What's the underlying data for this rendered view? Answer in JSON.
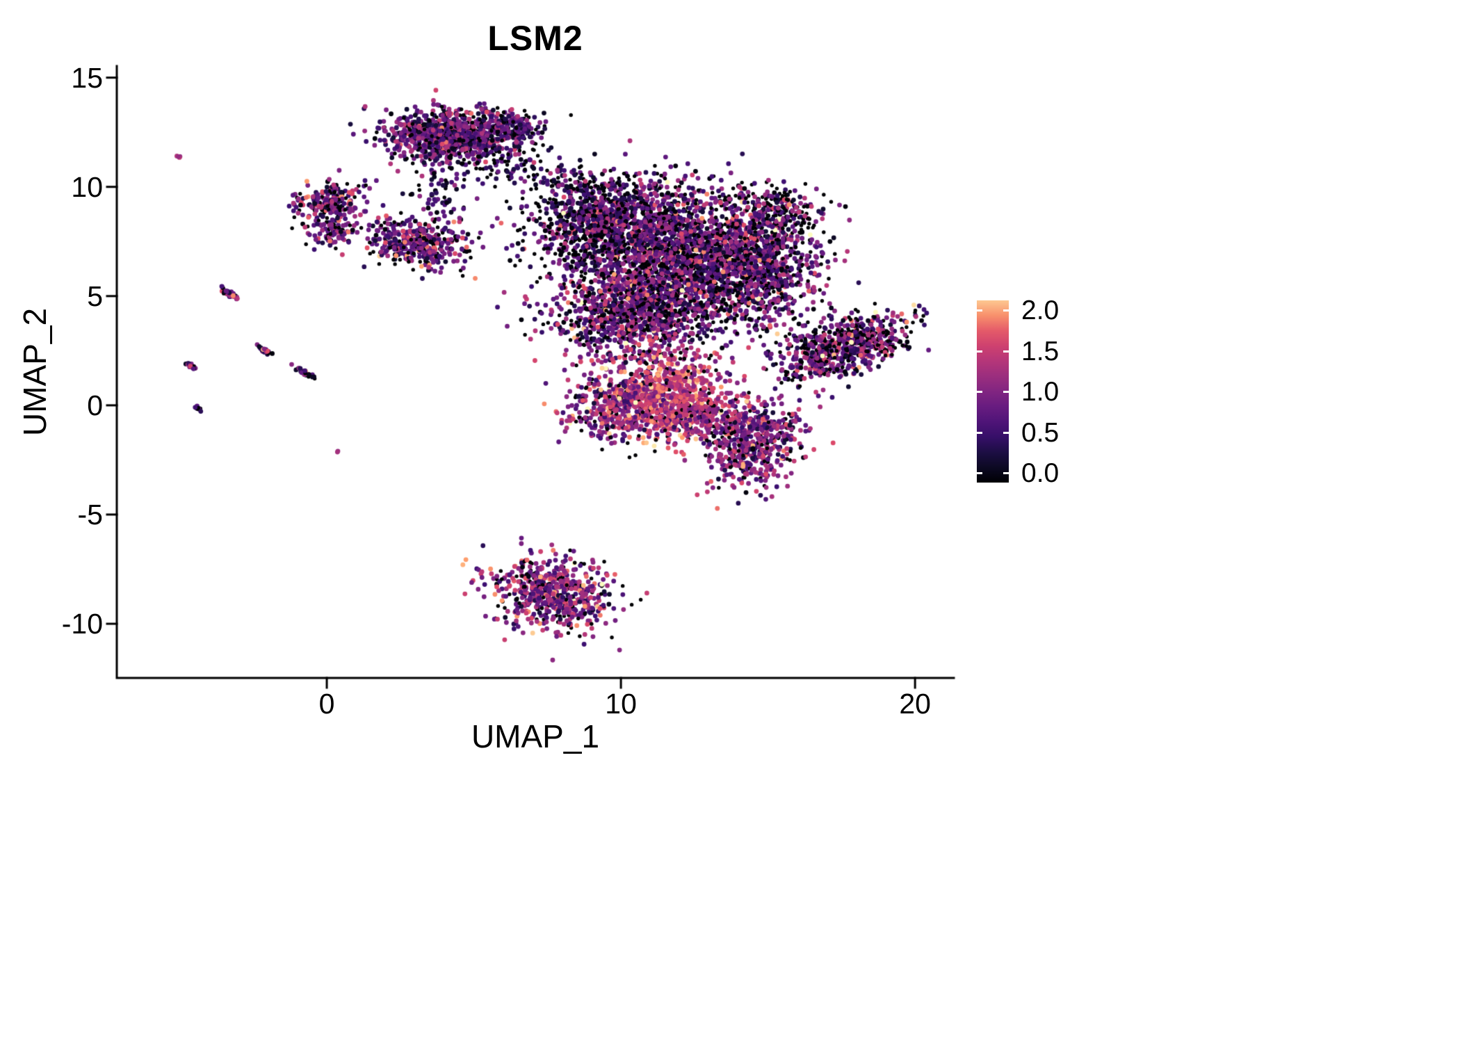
{
  "figure": {
    "background": "#ffffff"
  },
  "chart_data": {
    "type": "scatter",
    "title": "LSM2",
    "xlabel": "UMAP_1",
    "ylabel": "UMAP_2",
    "grid": false,
    "xlim": [
      -7.14,
      21.32
    ],
    "ylim": [
      -12.48,
      15.53
    ],
    "x_ticks": [
      {
        "value": 0,
        "label": "0"
      },
      {
        "value": 10,
        "label": "10"
      },
      {
        "value": 20,
        "label": "20"
      }
    ],
    "y_ticks": [
      {
        "value": 15,
        "label": "15"
      },
      {
        "value": 10,
        "label": "10"
      },
      {
        "value": 5,
        "label": "5"
      },
      {
        "value": 0,
        "label": "0"
      },
      {
        "value": -5,
        "label": "-5"
      },
      {
        "value": -10,
        "label": "-10"
      }
    ],
    "legend": {
      "position": "right",
      "colorbar": true,
      "min": 0.0,
      "max": 2.0,
      "color_domain_max": 2.3,
      "ticks": [
        {
          "value": 2.0,
          "label": "2.0"
        },
        {
          "value": 1.5,
          "label": "1.5"
        },
        {
          "value": 1.0,
          "label": "1.0"
        },
        {
          "value": 0.5,
          "label": "0.5"
        },
        {
          "value": 0.0,
          "label": "0.0"
        }
      ]
    },
    "colormap": {
      "name": "magma",
      "stops": [
        {
          "t": 0.0,
          "color": "#000004"
        },
        {
          "t": 0.125,
          "color": "#140e36"
        },
        {
          "t": 0.25,
          "color": "#3b0f70"
        },
        {
          "t": 0.375,
          "color": "#641a80"
        },
        {
          "t": 0.5,
          "color": "#8c2981"
        },
        {
          "t": 0.625,
          "color": "#b73779"
        },
        {
          "t": 0.75,
          "color": "#de4968"
        },
        {
          "t": 0.875,
          "color": "#fe9f6d"
        },
        {
          "t": 1.0,
          "color": "#fcfdbf"
        }
      ]
    },
    "axis_color": "#000000",
    "seed": 42,
    "point_radius": 3.4,
    "clusters": [
      {
        "name": "top-main",
        "cx": 4.2,
        "cy": 12.35,
        "sx": 1.05,
        "sy": 0.6,
        "angle": 0,
        "n": 850,
        "expr": {
          "zero": 0.18,
          "mean": 0.85,
          "sd": 0.45
        }
      },
      {
        "name": "top-east",
        "cx": 6.25,
        "cy": 12.7,
        "sx": 0.55,
        "sy": 0.35,
        "angle": 0,
        "n": 150,
        "expr": {
          "zero": 0.25,
          "mean": 0.7,
          "sd": 0.4
        }
      },
      {
        "name": "top-trail",
        "cx": 5.8,
        "cy": 11.1,
        "sx": 0.9,
        "sy": 0.55,
        "angle": 0,
        "n": 80,
        "expr": {
          "zero": 0.35,
          "mean": 0.5,
          "sd": 0.35
        }
      },
      {
        "name": "bridge-right",
        "cx": 7.9,
        "cy": 10.3,
        "sx": 0.75,
        "sy": 0.4,
        "angle": 0,
        "n": 50,
        "expr": {
          "zero": 0.4,
          "mean": 0.5,
          "sd": 0.35
        }
      },
      {
        "name": "left-lobe-upper",
        "cx": 0.15,
        "cy": 9.3,
        "sx": 0.62,
        "sy": 0.45,
        "angle": 0,
        "n": 200,
        "expr": {
          "zero": 0.2,
          "mean": 0.9,
          "sd": 0.5
        }
      },
      {
        "name": "left-lobe-lower",
        "cx": 0.35,
        "cy": 7.95,
        "sx": 0.45,
        "sy": 0.3,
        "angle": 0,
        "n": 90,
        "expr": {
          "zero": 0.2,
          "mean": 0.9,
          "sd": 0.5
        }
      },
      {
        "name": "mid-lobe",
        "cx": 3.1,
        "cy": 7.4,
        "sx": 0.85,
        "sy": 0.55,
        "angle": -10,
        "n": 380,
        "expr": {
          "zero": 0.2,
          "mean": 0.9,
          "sd": 0.5
        }
      },
      {
        "name": "mid-trail",
        "cx": 3.8,
        "cy": 9.8,
        "sx": 0.45,
        "sy": 0.75,
        "angle": 0,
        "n": 70,
        "expr": {
          "zero": 0.3,
          "mean": 0.6,
          "sd": 0.4
        }
      },
      {
        "name": "main-northwest",
        "cx": 9.4,
        "cy": 8.5,
        "sx": 1.3,
        "sy": 1.05,
        "angle": 0,
        "n": 1000,
        "expr": {
          "zero": 0.3,
          "mean": 0.75,
          "sd": 0.5
        }
      },
      {
        "name": "main-core",
        "cx": 12.3,
        "cy": 6.8,
        "sx": 1.7,
        "sy": 1.5,
        "angle": 0,
        "n": 2000,
        "expr": {
          "zero": 0.25,
          "mean": 0.9,
          "sd": 0.5
        }
      },
      {
        "name": "main-southwest",
        "cx": 10.4,
        "cy": 4.2,
        "sx": 1.4,
        "sy": 1.15,
        "angle": 0,
        "n": 950,
        "expr": {
          "zero": 0.22,
          "mean": 0.95,
          "sd": 0.5
        }
      },
      {
        "name": "main-east",
        "cx": 14.9,
        "cy": 6.1,
        "sx": 1.0,
        "sy": 1.3,
        "angle": 0,
        "n": 600,
        "expr": {
          "zero": 0.3,
          "mean": 0.8,
          "sd": 0.5
        }
      },
      {
        "name": "northeast-lobe",
        "cx": 15.2,
        "cy": 8.8,
        "sx": 0.85,
        "sy": 0.6,
        "angle": 20,
        "n": 220,
        "expr": {
          "zero": 0.3,
          "mean": 0.8,
          "sd": 0.5
        }
      },
      {
        "name": "hotspot",
        "cx": 11.6,
        "cy": 0.5,
        "sx": 1.0,
        "sy": 1.0,
        "angle": 0,
        "n": 720,
        "expr": {
          "zero": 0.08,
          "mean": 1.55,
          "sd": 0.35
        }
      },
      {
        "name": "hotspot-west",
        "cx": 9.7,
        "cy": -0.1,
        "sx": 0.78,
        "sy": 0.75,
        "angle": 0,
        "n": 320,
        "expr": {
          "zero": 0.15,
          "mean": 1.1,
          "sd": 0.45
        }
      },
      {
        "name": "south-mid",
        "cx": 12.9,
        "cy": -0.6,
        "sx": 1.1,
        "sy": 0.55,
        "angle": -15,
        "n": 280,
        "expr": {
          "zero": 0.12,
          "mean": 1.2,
          "sd": 0.4
        }
      },
      {
        "name": "southeast-appendage",
        "cx": 14.5,
        "cy": -1.8,
        "sx": 0.75,
        "sy": 1.0,
        "angle": -25,
        "n": 480,
        "expr": {
          "zero": 0.15,
          "mean": 1.0,
          "sd": 0.45
        }
      },
      {
        "name": "right-wing",
        "cx": 17.6,
        "cy": 2.7,
        "sx": 1.15,
        "sy": 0.58,
        "angle": 25,
        "n": 720,
        "expr": {
          "zero": 0.3,
          "mean": 0.9,
          "sd": 0.5
        }
      },
      {
        "name": "bottom-island",
        "cx": 7.7,
        "cy": -8.6,
        "sx": 1.05,
        "sy": 0.8,
        "angle": -15,
        "n": 600,
        "expr": {
          "zero": 0.15,
          "mean": 1.1,
          "sd": 0.45
        }
      },
      {
        "name": "streak-1",
        "cx": -3.35,
        "cy": 5.15,
        "sx": 0.22,
        "sy": 0.05,
        "angle": -40,
        "n": 45,
        "expr": {
          "zero": 0.25,
          "mean": 0.9,
          "sd": 0.6
        }
      },
      {
        "name": "streak-2",
        "cx": -2.15,
        "cy": 2.55,
        "sx": 0.16,
        "sy": 0.05,
        "angle": -40,
        "n": 28,
        "expr": {
          "zero": 0.25,
          "mean": 0.9,
          "sd": 0.6
        }
      },
      {
        "name": "streak-3",
        "cx": -0.75,
        "cy": 1.5,
        "sx": 0.2,
        "sy": 0.05,
        "angle": -40,
        "n": 32,
        "expr": {
          "zero": 0.3,
          "mean": 0.8,
          "sd": 0.6
        }
      },
      {
        "name": "streak-4",
        "cx": -4.55,
        "cy": 1.75,
        "sx": 0.13,
        "sy": 0.04,
        "angle": -40,
        "n": 20,
        "expr": {
          "zero": 0.3,
          "mean": 0.9,
          "sd": 0.6
        }
      },
      {
        "name": "streak-5",
        "cx": -4.35,
        "cy": -0.15,
        "sx": 0.1,
        "sy": 0.04,
        "angle": -40,
        "n": 14,
        "expr": {
          "zero": 0.55,
          "mean": 0.5,
          "sd": 0.3
        }
      },
      {
        "name": "dot-far-left",
        "cx": -5.05,
        "cy": 11.4,
        "sx": 0.06,
        "sy": 0.04,
        "angle": 0,
        "n": 4,
        "expr": {
          "zero": 0.0,
          "mean": 1.5,
          "sd": 0.2
        }
      },
      {
        "name": "dot-below",
        "cx": 0.35,
        "cy": -2.1,
        "sx": 0.05,
        "sy": 0.04,
        "angle": 0,
        "n": 2,
        "expr": {
          "zero": 0.0,
          "mean": 1.3,
          "sd": 0.15
        }
      }
    ]
  }
}
